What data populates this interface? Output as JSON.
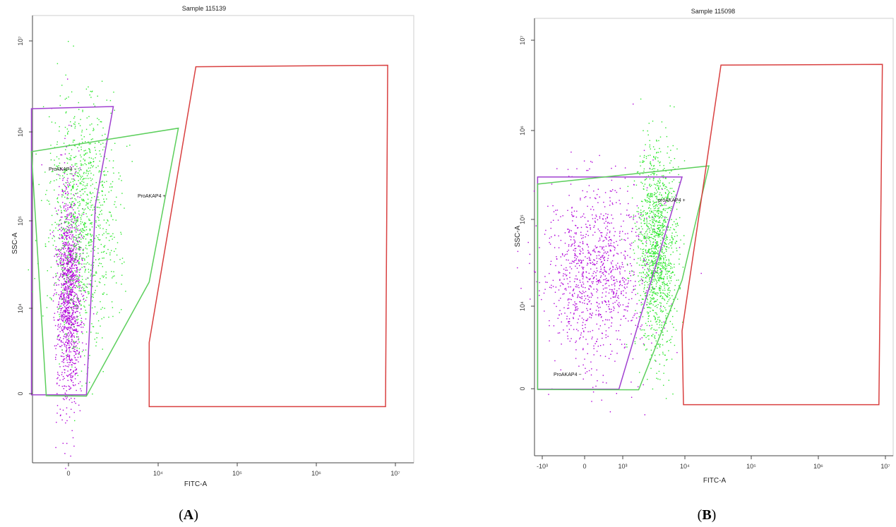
{
  "chart_data": [
    {
      "type": "scatter",
      "panel": "A",
      "caption_prefix": "(",
      "caption_letter": "A",
      "caption_suffix": ")",
      "title": "Sample 115139",
      "xlabel": "FITC-A",
      "ylabel": "SSC-A",
      "x_scale": "biexponential",
      "y_scale": "biexponential",
      "x_ticks": [
        {
          "label": "0",
          "value": 0
        },
        {
          "label": "10⁴",
          "value": 10000
        },
        {
          "label": "10⁵",
          "value": 100000
        },
        {
          "label": "10⁶",
          "value": 1000000
        },
        {
          "label": "10⁷",
          "value": 10000000
        }
      ],
      "y_ticks": [
        {
          "label": "0",
          "value": 0
        },
        {
          "label": "10⁴",
          "value": 10000
        },
        {
          "label": "10⁵",
          "value": 100000
        },
        {
          "label": "10⁶",
          "value": 1000000
        },
        {
          "label": "10⁷",
          "value": 10000000
        }
      ],
      "gates": [
        {
          "name": "ProAKAP4 −",
          "color": "#a040d0",
          "points": [
            [
              -5000,
              1800000
            ],
            [
              5000,
              1900000
            ],
            [
              3000,
              150000
            ],
            [
              2000,
              -800
            ],
            [
              -5000,
              -800
            ]
          ]
        },
        {
          "name": "ProAKAP4 +",
          "color": "#5ccf5c",
          "points": [
            [
              -5000,
              600000
            ],
            [
              18000,
              1100000
            ],
            [
              9000,
              20000
            ],
            [
              2000,
              -1800
            ],
            [
              -3000,
              -1500
            ],
            [
              -5000,
              600000
            ]
          ]
        },
        {
          "name": "",
          "color": "#d94040",
          "points": [
            [
              30000,
              5200000
            ],
            [
              8000000,
              5400000
            ],
            [
              7500000,
              -9500
            ],
            [
              9000,
              -9500
            ],
            [
              9000,
              6000
            ]
          ]
        }
      ],
      "populations": [
        {
          "name": "ProAKAP4 −",
          "color": "#b000d8",
          "center": [
            0,
            15000
          ],
          "x_spread": 1.0,
          "y_spread": 1.0,
          "weight": 0.55
        },
        {
          "name": "ProAKAP4 +",
          "color": "#2ee82e",
          "center": [
            1500,
            100000
          ],
          "x_spread": 1.0,
          "y_spread": 1.0,
          "weight": 0.45
        }
      ]
    },
    {
      "type": "scatter",
      "panel": "B",
      "caption_prefix": "(",
      "caption_letter": "B",
      "caption_suffix": ")",
      "title": "Sample 115098",
      "xlabel": "FITC-A",
      "ylabel": "SSC-A",
      "x_scale": "biexponential",
      "y_scale": "biexponential",
      "x_ticks": [
        {
          "label": "-10³",
          "value": -1000
        },
        {
          "label": "0",
          "value": 0
        },
        {
          "label": "10³",
          "value": 1000
        },
        {
          "label": "10⁴",
          "value": 10000
        },
        {
          "label": "10⁵",
          "value": 100000
        },
        {
          "label": "10⁶",
          "value": 1000000
        },
        {
          "label": "10⁷",
          "value": 10000000
        }
      ],
      "y_ticks": [
        {
          "label": "0",
          "value": 0
        },
        {
          "label": "10⁴",
          "value": 10000
        },
        {
          "label": "10⁵",
          "value": 100000
        },
        {
          "label": "10⁶",
          "value": 1000000
        },
        {
          "label": "10⁷",
          "value": 10000000
        }
      ],
      "gates": [
        {
          "name": "ProAKAP4 −",
          "color": "#a040d0",
          "points": [
            [
              -1300,
              300000
            ],
            [
              9000,
              300000
            ],
            [
              900,
              -300
            ],
            [
              -1300,
              -300
            ]
          ]
        },
        {
          "name": "proAKAP4 +",
          "color": "#5ccf5c",
          "points": [
            [
              -1300,
              250000
            ],
            [
              23000,
              400000
            ],
            [
              9000,
              20000
            ],
            [
              1800,
              -800
            ],
            [
              -1300,
              -600
            ]
          ]
        },
        {
          "name": "",
          "color": "#d94040",
          "points": [
            [
              35000,
              5300000
            ],
            [
              9000000,
              5400000
            ],
            [
              8000000,
              -12000
            ],
            [
              9500,
              -12000
            ],
            [
              9000,
              7000
            ]
          ]
        }
      ],
      "populations": [
        {
          "name": "ProAKAP4 −",
          "color": "#b000d8",
          "center": [
            300,
            25000
          ],
          "x_spread": 1.0,
          "y_spread": 1.0,
          "weight": 0.45
        },
        {
          "name": "proAKAP4 +",
          "color": "#2ee82e",
          "center": [
            3500,
            50000
          ],
          "x_spread": 1.0,
          "y_spread": 1.0,
          "weight": 0.55
        }
      ]
    }
  ]
}
